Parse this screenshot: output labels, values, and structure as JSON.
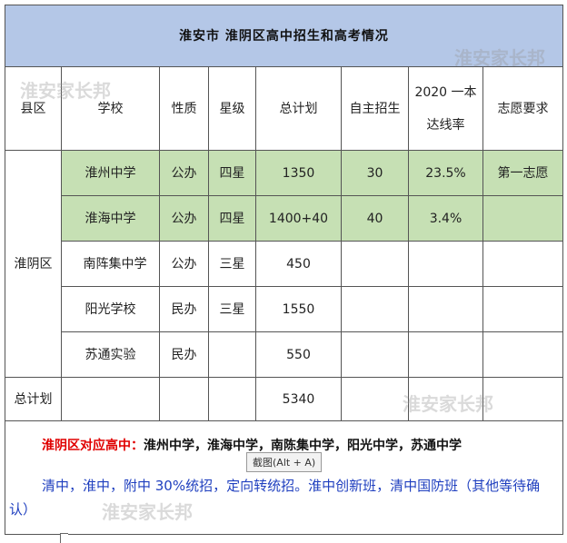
{
  "title": "淮安市  淮阴区高中招生和高考情况",
  "watermark": "淮安家长邦",
  "headers": [
    "县区",
    "学校",
    "性质",
    "星级",
    "总计划",
    "自主招生",
    "2020一本达线率",
    "志愿要求"
  ],
  "header_rate_line1": "2020 一本",
  "header_rate_line2": "达线率",
  "district": "淮阴区",
  "rows": [
    {
      "school": "淮州中学",
      "type": "公办",
      "star": "四星",
      "plan": "1350",
      "self": "30",
      "rate": "23.5%",
      "req": "第一志愿"
    },
    {
      "school": "淮海中学",
      "type": "公办",
      "star": "四星",
      "plan": "1400+40",
      "self": "40",
      "rate": "3.4%",
      "req": ""
    },
    {
      "school": "南阵集中学",
      "type": "公办",
      "star": "三星",
      "plan": "450",
      "self": "",
      "rate": "",
      "req": ""
    },
    {
      "school": "阳光学校",
      "type": "民办",
      "star": "三星",
      "plan": "1550",
      "self": "",
      "rate": "",
      "req": ""
    },
    {
      "school": "苏通实验",
      "type": "民办",
      "star": "",
      "plan": "550",
      "self": "",
      "rate": "",
      "req": ""
    }
  ],
  "total_label": "总计划",
  "total_value": "5340",
  "note_label": "淮阴区对应高中：",
  "note_schools": "淮州中学，淮海中学，南陈集中学，阳光中学，苏通中学",
  "note2": "清中，淮中，附中 30%统招，定向转统招。淮中创新班，清中国防班（其他等待确认）",
  "tooltip": "截图(Alt + A)",
  "colors": {
    "title_bg": "#b4c7e7",
    "highlight_bg": "#c6e0b4",
    "red": "#e00000",
    "blue": "#1f3fbf"
  }
}
